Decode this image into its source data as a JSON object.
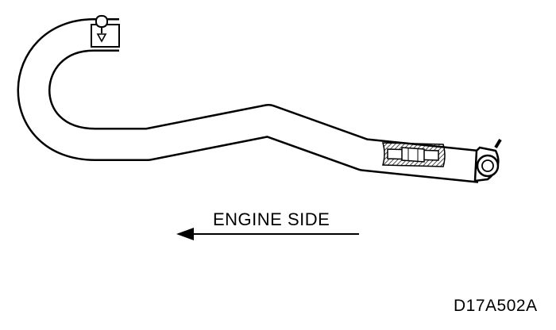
{
  "diagram": {
    "direction_label": "ENGINE SIDE",
    "code": "D17A502A",
    "colors": {
      "line": "#000000",
      "fill": "#ffffff",
      "hatch": "#000000"
    },
    "elements": [
      "hose",
      "hose-clamp",
      "hose-joint",
      "banjo-fitting",
      "direction-arrow"
    ]
  }
}
